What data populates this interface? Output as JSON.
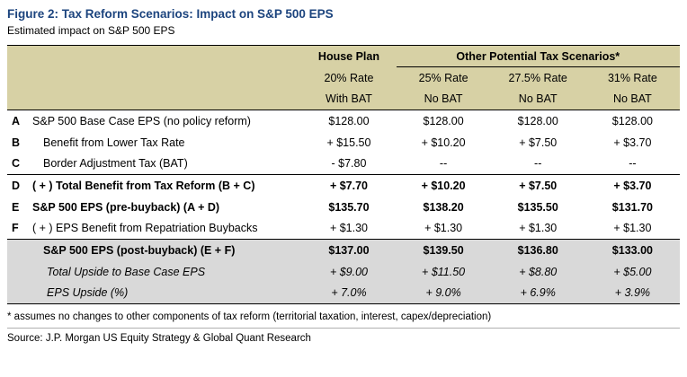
{
  "title": "Figure 2: Tax Reform Scenarios: Impact on S&P 500 EPS",
  "subtitle": "Estimated impact on S&P 500 EPS",
  "colors": {
    "title_blue": "#1c447e",
    "header_tan": "#d7d1a5",
    "shaded_gray": "#d9d9d9"
  },
  "table": {
    "col_groups": {
      "house_plan": "House Plan",
      "other": "Other Potential Tax Scenarios*"
    },
    "columns": [
      {
        "rate": "20% Rate",
        "bat": "With BAT"
      },
      {
        "rate": "25% Rate",
        "bat": "No BAT"
      },
      {
        "rate": "27.5% Rate",
        "bat": "No BAT"
      },
      {
        "rate": "31% Rate",
        "bat": "No BAT"
      }
    ],
    "rows": [
      {
        "letter": "A",
        "label": "S&P 500 Base Case EPS (no policy reform)",
        "values": [
          "$128.00",
          "$128.00",
          "$128.00",
          "$128.00"
        ]
      },
      {
        "letter": "B",
        "label": "Benefit from Lower Tax Rate",
        "values": [
          "+ $15.50",
          "+ $10.20",
          "+ $7.50",
          "+ $3.70"
        ]
      },
      {
        "letter": "C",
        "label": "Border Adjustment Tax (BAT)",
        "values": [
          "- $7.80",
          "--",
          "--",
          "--"
        ]
      },
      {
        "letter": "D",
        "label": "( + ) Total Benefit from Tax Reform (B + C)",
        "values": [
          "+ $7.70",
          "+ $10.20",
          "+ $7.50",
          "+ $3.70"
        ]
      },
      {
        "letter": "E",
        "label": "S&P 500 EPS (pre-buyback) (A + D)",
        "values": [
          "$135.70",
          "$138.20",
          "$135.50",
          "$131.70"
        ]
      },
      {
        "letter": "F",
        "label": "( + ) EPS Benefit from Repatriation Buybacks",
        "values": [
          "+ $1.30",
          "+ $1.30",
          "+ $1.30",
          "+ $1.30"
        ]
      },
      {
        "letter": "",
        "label": "S&P 500 EPS (post-buyback) (E + F)",
        "values": [
          "$137.00",
          "$139.50",
          "$136.80",
          "$133.00"
        ]
      },
      {
        "letter": "",
        "label": "Total Upside to Base Case EPS",
        "values": [
          "+ $9.00",
          "+ $11.50",
          "+ $8.80",
          "+ $5.00"
        ]
      },
      {
        "letter": "",
        "label": "EPS Upside (%)",
        "values": [
          "+ 7.0%",
          "+ 9.0%",
          "+ 6.9%",
          "+ 3.9%"
        ]
      }
    ]
  },
  "footnote": "* assumes no changes to other components of tax reform (territorial taxation, interest, capex/depreciation)",
  "source": "Source: J.P. Morgan US Equity Strategy & Global Quant Research",
  "chart_data": {
    "type": "table",
    "title": "Figure 2: Tax Reform Scenarios: Impact on S&P 500 EPS",
    "subtitle": "Estimated impact on S&P 500 EPS",
    "columns": [
      "House Plan 20% Rate With BAT",
      "25% Rate No BAT",
      "27.5% Rate No BAT",
      "31% Rate No BAT"
    ],
    "rows": [
      {
        "label": "S&P 500 Base Case EPS (no policy reform)",
        "values": [
          128.0,
          128.0,
          128.0,
          128.0
        ]
      },
      {
        "label": "Benefit from Lower Tax Rate",
        "values": [
          15.5,
          10.2,
          7.5,
          3.7
        ]
      },
      {
        "label": "Border Adjustment Tax (BAT)",
        "values": [
          -7.8,
          null,
          null,
          null
        ]
      },
      {
        "label": "Total Benefit from Tax Reform (B + C)",
        "values": [
          7.7,
          10.2,
          7.5,
          3.7
        ]
      },
      {
        "label": "S&P 500 EPS (pre-buyback) (A + D)",
        "values": [
          135.7,
          138.2,
          135.5,
          131.7
        ]
      },
      {
        "label": "EPS Benefit from Repatriation Buybacks",
        "values": [
          1.3,
          1.3,
          1.3,
          1.3
        ]
      },
      {
        "label": "S&P 500 EPS (post-buyback) (E + F)",
        "values": [
          137.0,
          139.5,
          136.8,
          133.0
        ]
      },
      {
        "label": "Total Upside to Base Case EPS",
        "values": [
          9.0,
          11.5,
          8.8,
          5.0
        ]
      },
      {
        "label": "EPS Upside (%)",
        "values": [
          7.0,
          9.0,
          6.9,
          3.9
        ]
      }
    ]
  }
}
